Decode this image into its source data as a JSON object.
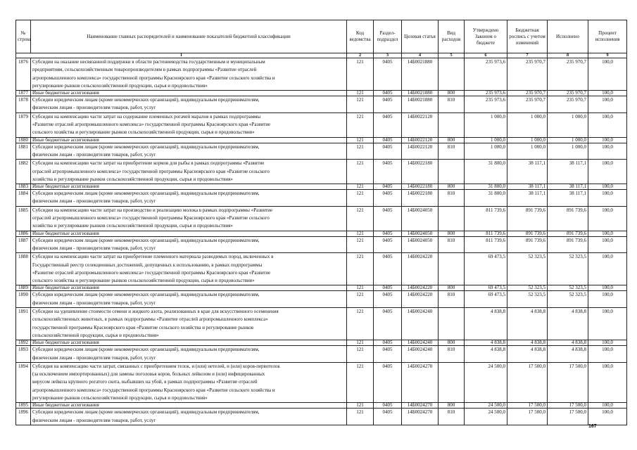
{
  "headers": {
    "no": "№ строки",
    "name": "Наименование главных распорядителей и наименование показателей бюджетной классификации",
    "code": "Код ведомства",
    "section": "Раздел-подраздел",
    "target": "Целевая статья",
    "kind": "Вид расходов",
    "approved": "Утверждено Законом о бюджете",
    "roster": "Бюджетная роспись с учетом изменений",
    "executed": "Исполнено",
    "percent": "Процент исполнения"
  },
  "column_numbers": [
    "1",
    "2",
    "3",
    "4",
    "5",
    "6",
    "7",
    "8",
    "9"
  ],
  "rows": [
    {
      "no": "1876",
      "name": "Субсидии на оказание несвязанной поддержки в области растениеводства государственным и муниципальным\nпредприятиям, сельскохозяйственным товаропроизводителям в рамках подпрограммы «Развитие отраслей\nагропромышленного комплекса» государственной программы Красноярского края «Развитие сельского хозяйства и\nрегулирование рынков сельскохозяйственной продукции, сырья и продовольствия»",
      "code": "121",
      "section": "0405",
      "target": "14Б0021880",
      "kind": "",
      "approved": "235 973,6",
      "roster": "235 970,7",
      "executed": "235 970,7",
      "percent": "100,0"
    },
    {
      "no": "1877",
      "name": "Иные бюджетные ассигнования",
      "code": "121",
      "section": "0405",
      "target": "14Б0021880",
      "kind": "800",
      "approved": "235 973,6",
      "roster": "235 970,7",
      "executed": "235 970,7",
      "percent": "100,0"
    },
    {
      "no": "1878",
      "name": "Субсидии юридическим лицам (кроме некоммерческих организаций), индивидуальным предпринимателям,\nфизическим лицам - производителям товаров, работ, услуг",
      "code": "121",
      "section": "0405",
      "target": "14Б0021880",
      "kind": "810",
      "approved": "235 973,6",
      "roster": "235 970,7",
      "executed": "235 970,7",
      "percent": "100,0"
    },
    {
      "no": "1879",
      "name": "Субсидии на компенсацию части затрат на содержание племенных рогачей маралов в рамках подпрограммы\n«Развитие отраслей агропромышленного комплекса» государственной программы Красноярского края «Развитие\nсельского хозяйства и регулирование рынков сельскохозяйственной продукции, сырья и продовольствия»",
      "code": "121",
      "section": "0405",
      "target": "14Б0022120",
      "kind": "",
      "approved": "1 000,0",
      "roster": "1 000,0",
      "executed": "1 000,0",
      "percent": "100,0"
    },
    {
      "no": "1880",
      "name": "Иные бюджетные ассигнования",
      "code": "121",
      "section": "0405",
      "target": "14Б0022120",
      "kind": "800",
      "approved": "1 000,0",
      "roster": "1 000,0",
      "executed": "1 000,0",
      "percent": "100,0"
    },
    {
      "no": "1881",
      "name": "Субсидии юридическим лицам (кроме некоммерческих организаций), индивидуальным предпринимателям,\nфизическим лицам - производителям товаров, работ, услуг",
      "code": "121",
      "section": "0405",
      "target": "14Б0022120",
      "kind": "810",
      "approved": "1 000,0",
      "roster": "1 000,0",
      "executed": "1 000,0",
      "percent": "100,0"
    },
    {
      "no": "1882",
      "name": "Субсидии на компенсацию части затрат на приобретение кормов для рыбы в рамках подпрограммы «Развитие\nотраслей агропромышленного комплекса» государственной программы Красноярского края «Развитие сельского\nхозяйства и регулирование рынков сельскохозяйственной продукции, сырья и продовольствия»",
      "code": "121",
      "section": "0405",
      "target": "14Б0022180",
      "kind": "",
      "approved": "31 800,0",
      "roster": "38 117,1",
      "executed": "38 117,1",
      "percent": "100,0"
    },
    {
      "no": "1883",
      "name": "Иные бюджетные ассигнования",
      "code": "121",
      "section": "0405",
      "target": "14Б0022180",
      "kind": "800",
      "approved": "31 800,0",
      "roster": "38 117,1",
      "executed": "38 117,1",
      "percent": "100,0"
    },
    {
      "no": "1884",
      "name": "Субсидии юридическим лицам (кроме некоммерческих организаций), индивидуальным предпринимателям,\nфизическим лицам - производителям товаров, работ, услуг",
      "code": "121",
      "section": "0405",
      "target": "14Б0022180",
      "kind": "810",
      "approved": "31 800,0",
      "roster": "38 117,1",
      "executed": "38 117,1",
      "percent": "100,0"
    },
    {
      "no": "1885",
      "name": "Субсидии на компенсацию части затрат на производство и реализацию молока в рамках подпрограммы «Развитие\nотраслей агропромышленного комплекса» государственной программы Красноярского края «Развитие сельского\nхозяйства и регулирование рынков сельскохозяйственной продукции, сырья и продовольствия»",
      "code": "121",
      "section": "0405",
      "target": "14Б0024050",
      "kind": "",
      "approved": "811 739,6",
      "roster": "891 739,6",
      "executed": "891 739,6",
      "percent": "100,0"
    },
    {
      "no": "1886",
      "name": "Иные бюджетные ассигнования",
      "code": "121",
      "section": "0405",
      "target": "14Б0024050",
      "kind": "800",
      "approved": "811 739,6",
      "roster": "891 739,6",
      "executed": "891 739,6",
      "percent": "100,0"
    },
    {
      "no": "1887",
      "name": "Субсидии юридическим лицам (кроме некоммерческих организаций), индивидуальным предпринимателям,\nфизическим лицам - производителям товаров, работ, услуг",
      "code": "121",
      "section": "0405",
      "target": "14Б0024050",
      "kind": "810",
      "approved": "811 739,6",
      "roster": "891 739,6",
      "executed": "891 739,6",
      "percent": "100,0"
    },
    {
      "no": "1888",
      "name": "Субсидии на компенсацию части затрат на приобретение племенного материала разводимых пород, включенных в\nГосударственный реестр селекционных достижений, допущенных к использованию, в рамках подпрограммы\n«Развитие отраслей агропромышленного комплекса» государственной программы Красноярского края «Развитие\nсельского хозяйства и регулирование рынков сельскохозяйственной продукции, сырья и продовольствия»",
      "code": "121",
      "section": "0405",
      "target": "14Б0024220",
      "kind": "",
      "approved": "69 473,5",
      "roster": "52 323,5",
      "executed": "52 323,5",
      "percent": "100,0"
    },
    {
      "no": "1889",
      "name": "Иные бюджетные ассигнования",
      "code": "121",
      "section": "0405",
      "target": "14Б0024220",
      "kind": "800",
      "approved": "69 473,5",
      "roster": "52 323,5",
      "executed": "52 323,5",
      "percent": "100,0"
    },
    {
      "no": "1890",
      "name": "Субсидии юридическим лицам (кроме некоммерческих организаций), индивидуальным предпринимателям,\nфизическим лицам - производителям товаров, работ, услуг",
      "code": "121",
      "section": "0405",
      "target": "14Б0024220",
      "kind": "810",
      "approved": "69 473,5",
      "roster": "52 323,5",
      "executed": "52 323,5",
      "percent": "100,0"
    },
    {
      "no": "1891",
      "name": "Субсидии на удешевление стоимости семени и жидкого азота, реализованных в крае для искусственного осеменения\nсельскохозяйственных животных, в рамках подпрограммы «Развитие отраслей агропромышленного комплекса»\nгосударственной программы Красноярского края «Развитие сельского хозяйства и регулирование рынков\nсельскохозяйственной продукции, сырья и продовольствия»",
      "code": "121",
      "section": "0405",
      "target": "14Б0024240",
      "kind": "",
      "approved": "4 838,8",
      "roster": "4 838,8",
      "executed": "4 838,8",
      "percent": "100,0"
    },
    {
      "no": "1892",
      "name": "Иные бюджетные ассигнования",
      "code": "121",
      "section": "0405",
      "target": "14Б0024240",
      "kind": "800",
      "approved": "4 838,8",
      "roster": "4 838,8",
      "executed": "4 838,8",
      "percent": "100,0"
    },
    {
      "no": "1893",
      "name": "Субсидии юридическим лицам (кроме некоммерческих организаций), индивидуальным предпринимателям,\nфизическим лицам - производителям товаров, работ, услуг",
      "code": "121",
      "section": "0405",
      "target": "14Б0024240",
      "kind": "810",
      "approved": "4 838,8",
      "roster": "4 838,8",
      "executed": "4 838,8",
      "percent": "100,0"
    },
    {
      "no": "1894",
      "name": "Субсидия на компенсацию части затрат, связанных с приобретением телок, и (или) нетелей, и (или) коров-первотелок\n(за исключением импортированных) для замены поголовья коров, больных лейкозом и (или) инфицированных\nвирусом лейкоза крупного рогатого скота, выбывших на убой, в рамках подпрограммы «Развитие отраслей\nагропромышленного комплекса» государственной программы Красноярского края «Развитие сельского хозяйства и\nрегулирование рынков сельскохозяйственной продукции, сырья и продовольствия»",
      "code": "121",
      "section": "0405",
      "target": "14Б0024270",
      "kind": "",
      "approved": "24 500,0",
      "roster": "17 500,0",
      "executed": "17 500,0",
      "percent": "100,0"
    },
    {
      "no": "1895",
      "name": "Иные бюджетные ассигнования",
      "code": "121",
      "section": "0405",
      "target": "14Б0024270",
      "kind": "800",
      "approved": "24 500,0",
      "roster": "17 500,0",
      "executed": "17 500,0",
      "percent": "100,0"
    },
    {
      "no": "1896",
      "name": "Субсидии юридическим лицам (кроме некоммерческих организаций), индивидуальным предпринимателям,\nфизическим лицам - производителям товаров, работ, услуг",
      "code": "121",
      "section": "0405",
      "target": "14Б0024270",
      "kind": "810",
      "approved": "24 500,0",
      "roster": "17 500,0",
      "executed": "17 500,0",
      "percent": "100,0"
    }
  ],
  "page_number": "167"
}
